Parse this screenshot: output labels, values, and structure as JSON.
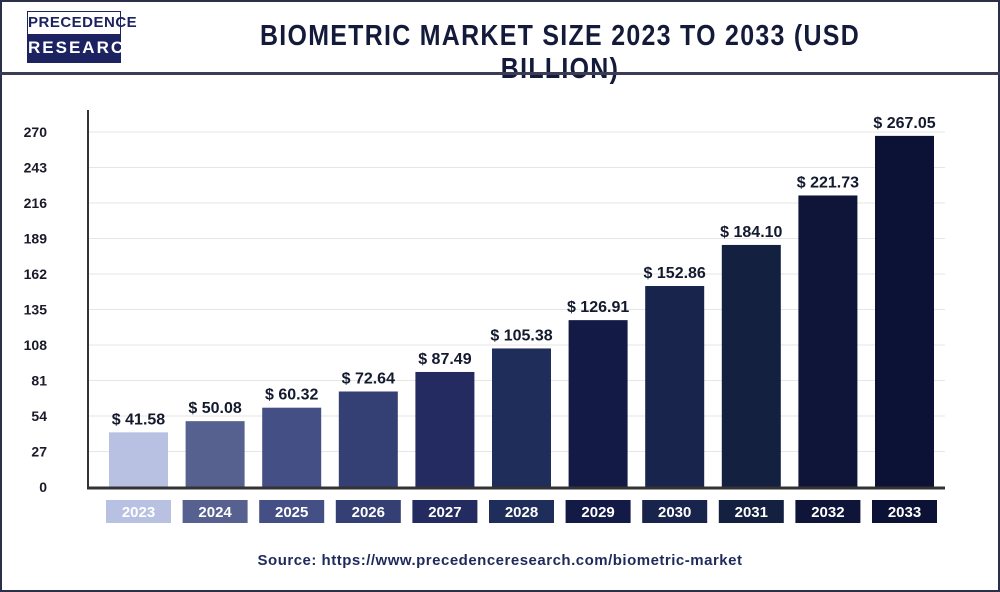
{
  "logo": {
    "line1": "PRECEDENCE",
    "line2": "RESEARCH"
  },
  "source": "Source: https://www.precedenceresearch.com/biometric-market",
  "chart_data": {
    "type": "bar",
    "title": "BIOMETRIC MARKET SIZE 2023 TO 2033 (USD BILLION)",
    "xlabel": "",
    "ylabel": "",
    "categories": [
      "2023",
      "2024",
      "2025",
      "2026",
      "2027",
      "2028",
      "2029",
      "2030",
      "2031",
      "2032",
      "2033"
    ],
    "values": [
      41.58,
      50.08,
      60.32,
      72.64,
      87.49,
      105.38,
      126.91,
      152.86,
      184.1,
      221.73,
      267.05
    ],
    "data_labels": [
      "$ 41.58",
      "$ 50.08",
      "$ 60.32",
      "$ 72.64",
      "$ 87.49",
      "$ 105.38",
      "$ 126.91",
      "$ 152.86",
      "$ 184.10",
      "$ 221.73",
      "$ 267.05"
    ],
    "yticks": [
      0,
      27,
      54,
      81,
      108,
      135,
      162,
      189,
      216,
      243,
      270
    ],
    "ylim": [
      0,
      270
    ],
    "grid": true,
    "legend": "none",
    "colors": [
      "#b8c1e1",
      "#56618f",
      "#444f86",
      "#343f74",
      "#242b60",
      "#1f2d5a",
      "#141a46",
      "#18244b",
      "#13203f",
      "#0e1539",
      "#0b1236"
    ]
  }
}
